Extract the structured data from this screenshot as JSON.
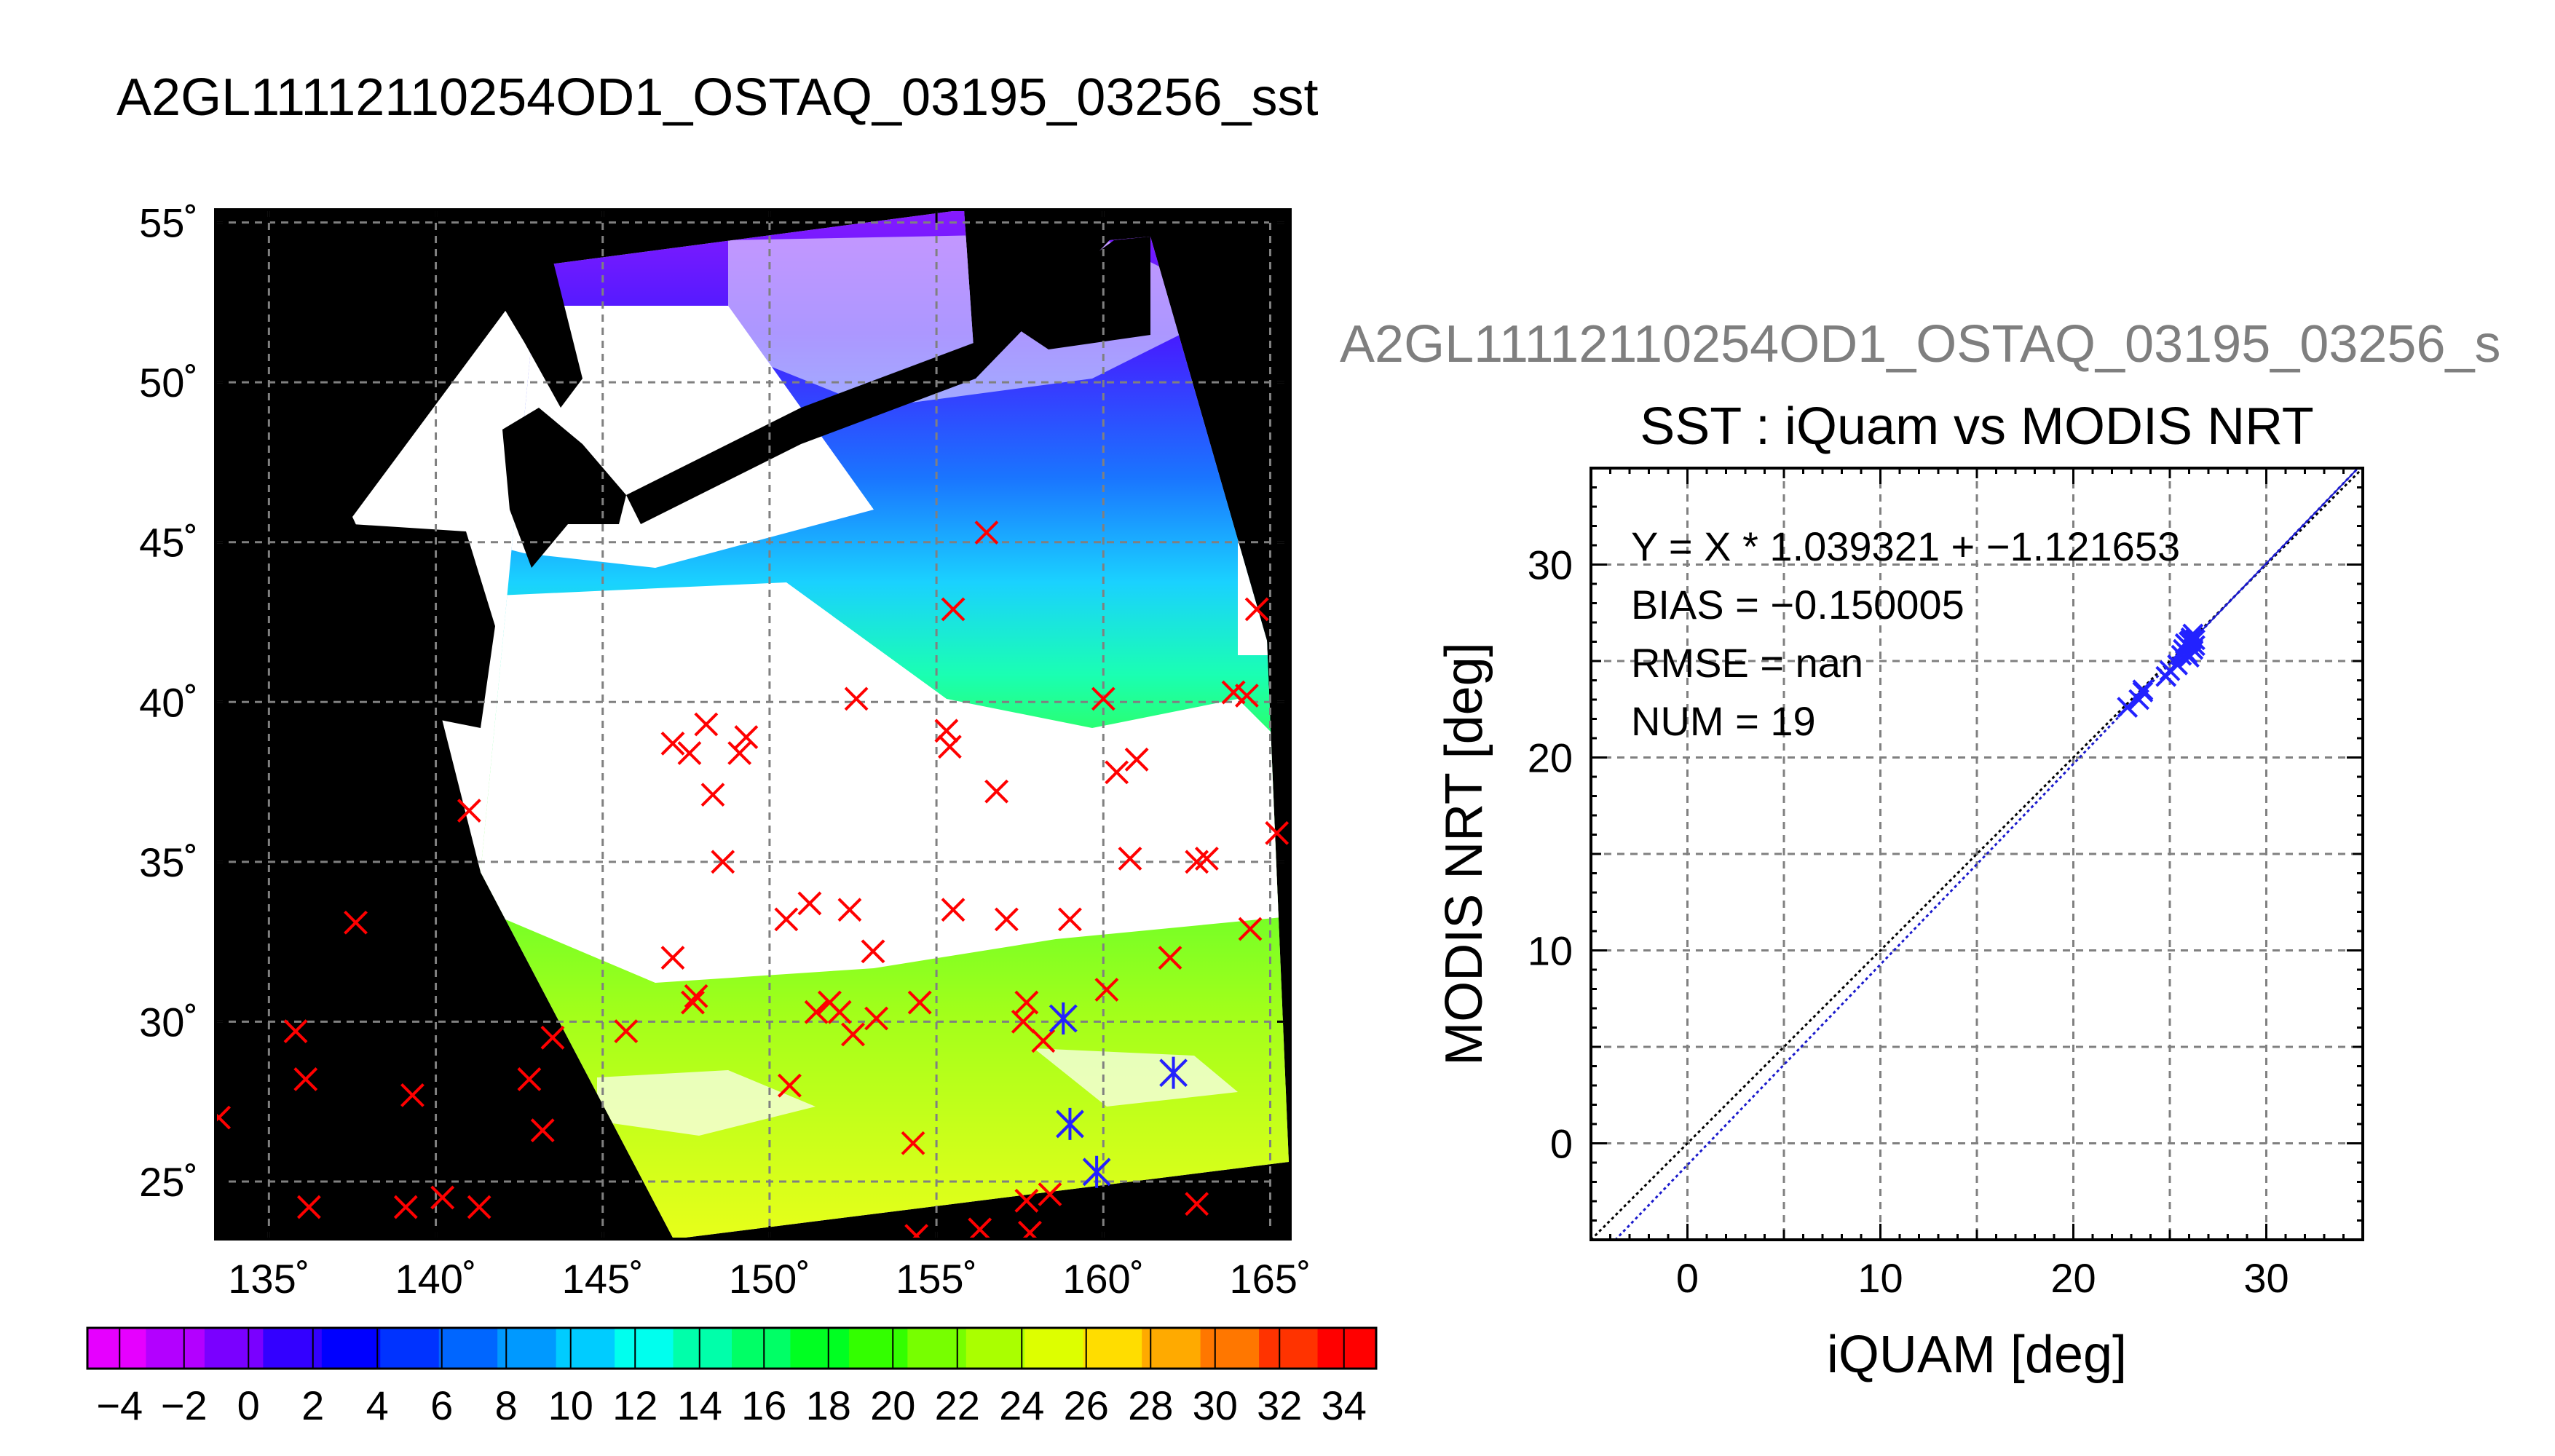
{
  "left_title": "A2GL11112110254OD1_OSTAQ_03195_03256_sst",
  "right_title_gray": "A2GL11112110254OD1_OSTAQ_03195_03256_s",
  "colors": {
    "match_marker": "#ff0000",
    "modis_marker": "#2222ff",
    "fit_line": "#1a1acc",
    "identity_line": "#000000",
    "grid": "#808080",
    "land": "#000000",
    "swath": "#ffffff"
  },
  "chart_data": [
    {
      "type": "scatter",
      "title": "",
      "xlabel": "",
      "ylabel": "",
      "x_ticks": [
        "135˚",
        "140˚",
        "145˚",
        "150˚",
        "155˚",
        "160˚",
        "165˚"
      ],
      "y_ticks": [
        "25˚",
        "30˚",
        "35˚",
        "40˚",
        "45˚",
        "50˚",
        "55˚"
      ],
      "xlim": [
        133.4,
        165.6
      ],
      "ylim": [
        23.2,
        55.4
      ],
      "grid": true,
      "background": "map: black land, white swath with SST color shading",
      "colorbar": {
        "min": -5,
        "max": 35,
        "labels": [
          "−4",
          "−2",
          "0",
          "2",
          "4",
          "6",
          "8",
          "10",
          "12",
          "14",
          "16",
          "18",
          "20",
          "22",
          "24",
          "26",
          "28",
          "30",
          "32",
          "34"
        ],
        "colors": [
          "#e600ff",
          "#b300ff",
          "#7a00ff",
          "#3300ff",
          "#0000ff",
          "#0033ff",
          "#0066ff",
          "#0099ff",
          "#00ccff",
          "#00ffee",
          "#00ffaa",
          "#00ff66",
          "#00ff22",
          "#33ff00",
          "#77ff00",
          "#aaff00",
          "#ddff00",
          "#ffdd00",
          "#ffaa00",
          "#ff7700",
          "#ff3300",
          "#ff0000"
        ]
      },
      "series": [
        {
          "marker": "x",
          "points": [
            [
              133.5,
              27.0
            ],
            [
              135.8,
              29.7
            ],
            [
              136.1,
              28.2
            ],
            [
              136.2,
              24.2
            ],
            [
              137.6,
              33.1
            ],
            [
              139.1,
              24.2
            ],
            [
              139.3,
              27.7
            ],
            [
              140.2,
              24.5
            ],
            [
              141.0,
              36.6
            ],
            [
              141.3,
              24.2
            ],
            [
              142.8,
              28.2
            ],
            [
              143.2,
              26.6
            ],
            [
              143.5,
              29.5
            ],
            [
              145.7,
              29.7
            ],
            [
              147.1,
              38.7
            ],
            [
              147.1,
              32.0
            ],
            [
              147.6,
              38.4
            ],
            [
              147.7,
              30.6
            ],
            [
              147.8,
              30.8
            ],
            [
              148.1,
              39.3
            ],
            [
              148.3,
              37.1
            ],
            [
              148.6,
              35.0
            ],
            [
              149.1,
              38.4
            ],
            [
              149.3,
              38.9
            ],
            [
              150.5,
              33.2
            ],
            [
              150.6,
              28.0
            ],
            [
              151.2,
              33.7
            ],
            [
              151.4,
              30.3
            ],
            [
              151.8,
              30.6
            ],
            [
              152.1,
              30.3
            ],
            [
              152.4,
              33.5
            ],
            [
              152.5,
              29.6
            ],
            [
              152.6,
              40.1
            ],
            [
              153.1,
              32.2
            ],
            [
              153.2,
              30.1
            ],
            [
              154.3,
              26.2
            ],
            [
              154.4,
              23.3
            ],
            [
              154.5,
              30.6
            ],
            [
              155.3,
              39.1
            ],
            [
              155.4,
              38.6
            ],
            [
              155.5,
              33.5
            ],
            [
              155.5,
              42.9
            ],
            [
              156.3,
              23.5
            ],
            [
              156.5,
              45.3
            ],
            [
              156.8,
              37.2
            ],
            [
              157.1,
              33.2
            ],
            [
              157.6,
              30.0
            ],
            [
              157.7,
              30.6
            ],
            [
              157.7,
              24.4
            ],
            [
              157.8,
              23.4
            ],
            [
              158.2,
              29.4
            ],
            [
              158.4,
              24.6
            ],
            [
              158.8,
              30.1
            ],
            [
              159.0,
              26.8
            ],
            [
              159.0,
              33.2
            ],
            [
              159.8,
              25.3
            ],
            [
              160.0,
              40.1
            ],
            [
              160.1,
              31.0
            ],
            [
              160.4,
              37.8
            ],
            [
              160.8,
              35.1
            ],
            [
              161.0,
              38.2
            ],
            [
              162.0,
              32.0
            ],
            [
              162.1,
              28.4
            ],
            [
              162.8,
              24.3
            ],
            [
              162.8,
              35.0
            ],
            [
              163.1,
              35.1
            ],
            [
              163.9,
              40.3
            ],
            [
              164.3,
              40.2
            ],
            [
              164.4,
              32.9
            ],
            [
              164.6,
              42.9
            ],
            [
              165.2,
              35.9
            ]
          ]
        },
        {
          "marker": "*",
          "points": [
            [
              158.8,
              30.1
            ],
            [
              159.0,
              26.8
            ],
            [
              159.8,
              25.3
            ],
            [
              162.1,
              28.4
            ]
          ]
        }
      ]
    },
    {
      "type": "scatter",
      "title": "SST : iQuam vs MODIS NRT",
      "xlabel": "iQUAM [deg]",
      "ylabel": "MODIS NRT [deg]",
      "xlim": [
        -5,
        35
      ],
      "ylim": [
        -5,
        35
      ],
      "x_ticks": [
        0,
        10,
        20,
        30
      ],
      "y_ticks": [
        0,
        10,
        20,
        30
      ],
      "grid": true,
      "annotations": [
        "Y = X * 1.039321 + −1.121653",
        "BIAS = −0.150005",
        "RMSE = nan",
        "NUM = 19"
      ],
      "fit": {
        "slope": 1.039321,
        "intercept": -1.121653
      },
      "identity_line": true,
      "points": [
        [
          22.8,
          22.6
        ],
        [
          23.4,
          23.0
        ],
        [
          23.6,
          23.4
        ],
        [
          23.6,
          23.5
        ],
        [
          24.8,
          24.2
        ],
        [
          25.0,
          24.5
        ],
        [
          25.6,
          25.3
        ],
        [
          25.7,
          25.6
        ],
        [
          25.8,
          25.9
        ],
        [
          25.9,
          25.4
        ],
        [
          26.0,
          26.0
        ],
        [
          26.1,
          26.1
        ],
        [
          26.1,
          26.2
        ],
        [
          26.2,
          25.6
        ],
        [
          26.2,
          26.4
        ],
        [
          26.3,
          26.1
        ],
        [
          26.3,
          25.8
        ],
        [
          26.0,
          25.2
        ],
        [
          25.4,
          24.8
        ]
      ]
    }
  ]
}
